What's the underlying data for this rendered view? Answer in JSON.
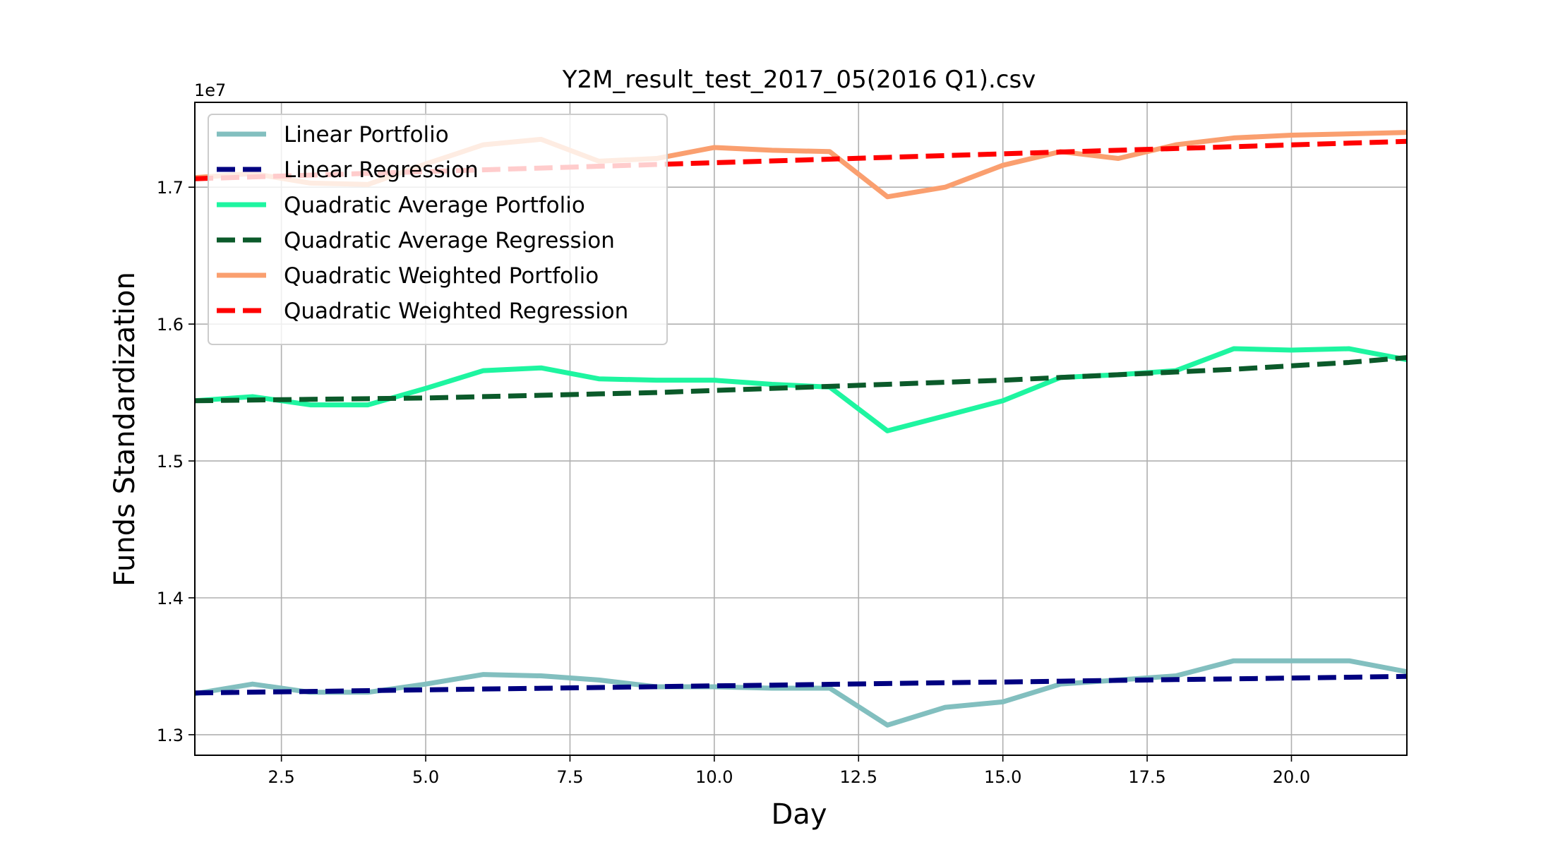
{
  "chart_data": {
    "type": "line",
    "title": "Y2M_result_test_2017_05(2016 Q1).csv",
    "xlabel": "Day",
    "ylabel": "Funds Standardization",
    "y_offset_label": "1e7",
    "xlim": [
      1,
      22
    ],
    "ylim": [
      1.285,
      1.762
    ],
    "xticks": [
      2.5,
      5.0,
      7.5,
      10.0,
      12.5,
      15.0,
      17.5,
      20.0
    ],
    "xtick_labels": [
      "2.5",
      "5.0",
      "7.5",
      "10.0",
      "12.5",
      "15.0",
      "17.5",
      "20.0"
    ],
    "yticks": [
      1.3,
      1.4,
      1.5,
      1.6,
      1.7
    ],
    "ytick_labels": [
      "1.3",
      "1.4",
      "1.5",
      "1.6",
      "1.7"
    ],
    "grid": true,
    "legend_position": "top-left",
    "x": [
      1,
      2,
      3,
      4,
      5,
      6,
      7,
      8,
      9,
      10,
      11,
      12,
      13,
      14,
      15,
      16,
      17,
      18,
      19,
      20,
      21,
      22
    ],
    "series": [
      {
        "name": "Linear Portfolio",
        "color": "#82bfbf",
        "style": "solid",
        "values": [
          1.33,
          1.337,
          1.331,
          1.331,
          1.337,
          1.344,
          1.343,
          1.34,
          1.335,
          1.335,
          1.334,
          1.334,
          1.307,
          1.32,
          1.324,
          1.337,
          1.34,
          1.343,
          1.354,
          1.354,
          1.354,
          1.346
        ]
      },
      {
        "name": "Linear Regression",
        "color": "#000080",
        "style": "dashed",
        "values": [
          1.3305,
          1.3311,
          1.3316,
          1.3322,
          1.3328,
          1.3334,
          1.3339,
          1.3345,
          1.3351,
          1.3357,
          1.3362,
          1.3368,
          1.3374,
          1.338,
          1.3385,
          1.3391,
          1.3397,
          1.3403,
          1.3408,
          1.3414,
          1.342,
          1.3426
        ]
      },
      {
        "name": "Quadratic Average Portfolio",
        "color": "#1ef5a0",
        "style": "solid",
        "values": [
          1.544,
          1.547,
          1.541,
          1.541,
          1.553,
          1.566,
          1.568,
          1.56,
          1.559,
          1.559,
          1.556,
          1.554,
          1.522,
          1.533,
          1.544,
          1.561,
          1.563,
          1.566,
          1.582,
          1.581,
          1.582,
          1.574
        ]
      },
      {
        "name": "Quadratic Average Regression",
        "color": "#0b5a2a",
        "style": "dashed",
        "values": [
          1.544,
          1.5445,
          1.545,
          1.5455,
          1.546,
          1.547,
          1.548,
          1.549,
          1.55,
          1.5515,
          1.553,
          1.5545,
          1.556,
          1.5575,
          1.559,
          1.561,
          1.563,
          1.565,
          1.567,
          1.5695,
          1.572,
          1.5755
        ]
      },
      {
        "name": "Quadratic Weighted Portfolio",
        "color": "#fa9f6f",
        "style": "solid",
        "values": [
          1.707,
          1.71,
          1.703,
          1.702,
          1.717,
          1.731,
          1.735,
          1.719,
          1.721,
          1.729,
          1.727,
          1.726,
          1.693,
          1.7,
          1.716,
          1.726,
          1.721,
          1.731,
          1.736,
          1.738,
          1.739,
          1.74
        ]
      },
      {
        "name": "Quadratic Weighted Regression",
        "color": "#ff0000",
        "style": "dashed",
        "values": [
          1.7062,
          1.7075,
          1.7088,
          1.7101,
          1.7114,
          1.7127,
          1.714,
          1.7153,
          1.7166,
          1.7179,
          1.7192,
          1.7205,
          1.7218,
          1.7231,
          1.7244,
          1.7257,
          1.727,
          1.7283,
          1.7296,
          1.7309,
          1.7322,
          1.7335
        ]
      }
    ]
  }
}
